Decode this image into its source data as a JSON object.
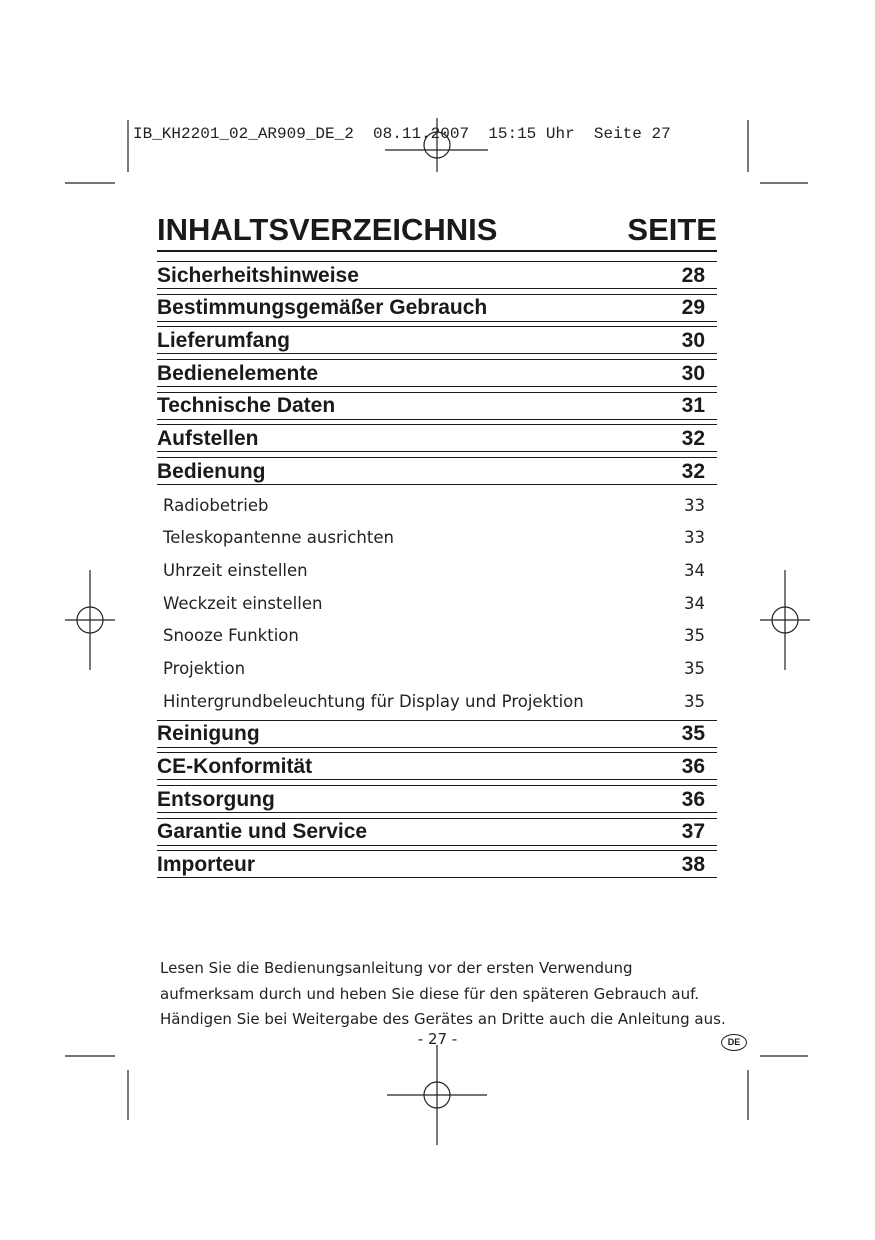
{
  "slug": "IB_KH2201_02_AR909_DE_2  08.11.2007  15:15 Uhr  Seite 27",
  "header": {
    "title": "INHALTSVERZEICHNIS",
    "page_col": "SEITE"
  },
  "toc_top": [
    {
      "label": "Sicherheitshinweise",
      "page": "28"
    },
    {
      "label": "Bestimmungsgemäßer Gebrauch",
      "page": "29"
    },
    {
      "label": "Lieferumfang",
      "page": "30"
    },
    {
      "label": "Bedienelemente",
      "page": "30"
    },
    {
      "label": "Technische Daten",
      "page": "31"
    },
    {
      "label": "Aufstellen",
      "page": "32"
    },
    {
      "label": "Bedienung",
      "page": "32"
    }
  ],
  "toc_sub": [
    {
      "label": "Radiobetrieb",
      "page": "33"
    },
    {
      "label": "Teleskopantenne ausrichten",
      "page": "33"
    },
    {
      "label": "Uhrzeit einstellen",
      "page": "34"
    },
    {
      "label": "Weckzeit einstellen",
      "page": "34"
    },
    {
      "label": "Snooze Funktion",
      "page": "35"
    },
    {
      "label": "Projektion",
      "page": "35"
    },
    {
      "label": "Hintergrundbeleuchtung für Display und Projektion",
      "page": "35"
    }
  ],
  "toc_bottom": [
    {
      "label": "Reinigung",
      "page": "35"
    },
    {
      "label": "CE-Konformität",
      "page": "36"
    },
    {
      "label": "Entsorgung",
      "page": "36"
    },
    {
      "label": "Garantie und Service",
      "page": "37"
    },
    {
      "label": "Importeur",
      "page": "38"
    }
  ],
  "note": "Lesen Sie die Bedienungsanleitung vor der ersten Verwendung aufmerksam durch und heben Sie diese für den späteren Gebrauch auf. Händigen Sie bei Weitergabe des Gerätes an Dritte auch die Anleitung aus.",
  "page_number": "- 27 -",
  "language_badge": "DE"
}
